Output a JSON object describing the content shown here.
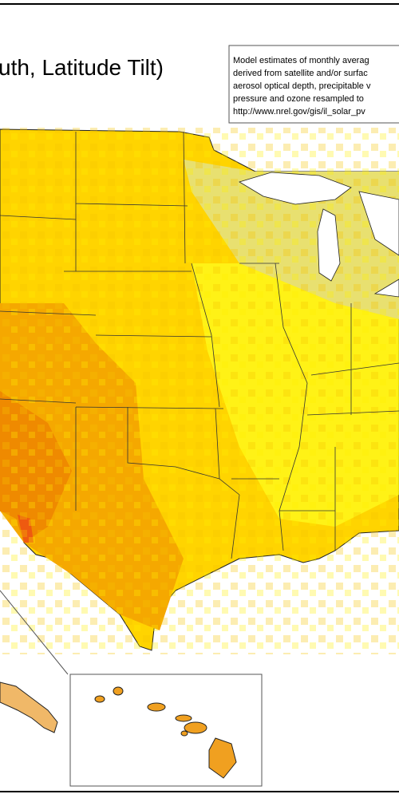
{
  "title": "uth, Latitude Tilt)",
  "note": {
    "lines": [
      "Model estimates of monthly averag",
      "derived from satellite and/or surfac",
      "aerosol optical depth, precipitable v",
      "pressure and ozone resampled to",
      "http://www.nrel.gov/gis/il_solar_pv"
    ]
  }
}
